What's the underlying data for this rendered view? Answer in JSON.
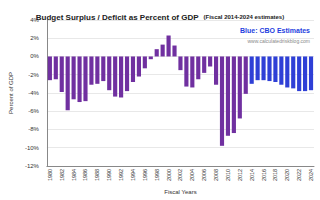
{
  "chart_data": {
    "type": "bar",
    "title": "Budget Surplus / Deficit as Percent of GDP",
    "subtitle": "(Fiscal 2014-2024 estimates)",
    "x_label": "Fiscal Years",
    "y_label": "Percent of GDP",
    "categories": [
      "1980",
      null,
      "1982",
      null,
      "1984",
      null,
      "1986",
      null,
      "1988",
      null,
      "1990",
      null,
      "1992",
      null,
      "1994",
      null,
      "1996",
      null,
      "1998",
      null,
      "2000",
      null,
      "2002",
      null,
      "2004",
      null,
      "2006",
      null,
      "2008",
      null,
      "2010",
      null,
      "2012",
      null,
      "2014",
      null,
      "2016",
      null,
      "2018",
      null,
      "2020",
      null,
      "2022",
      null,
      "2024"
    ],
    "values": [
      -2.6,
      -2.5,
      -3.9,
      -5.9,
      -4.7,
      -5.0,
      -4.9,
      -3.1,
      -3.0,
      -2.7,
      -3.7,
      -4.4,
      -4.5,
      -3.8,
      -2.8,
      -2.2,
      -1.3,
      -0.3,
      0.8,
      1.3,
      2.3,
      1.2,
      -1.5,
      -3.3,
      -3.4,
      -2.5,
      -1.8,
      -1.1,
      -3.1,
      -9.8,
      -8.7,
      -8.4,
      -6.8,
      -4.1,
      -3.0,
      -2.6,
      -2.6,
      -2.7,
      -2.8,
      -3.1,
      -3.4,
      -3.5,
      -3.8,
      -3.8,
      -3.7
    ],
    "colors": [
      "#7030a0",
      "#7030a0",
      "#7030a0",
      "#7030a0",
      "#7030a0",
      "#7030a0",
      "#7030a0",
      "#7030a0",
      "#7030a0",
      "#7030a0",
      "#7030a0",
      "#7030a0",
      "#7030a0",
      "#7030a0",
      "#7030a0",
      "#7030a0",
      "#7030a0",
      "#7030a0",
      "#7030a0",
      "#7030a0",
      "#7030a0",
      "#7030a0",
      "#7030a0",
      "#7030a0",
      "#7030a0",
      "#7030a0",
      "#7030a0",
      "#7030a0",
      "#7030a0",
      "#7030a0",
      "#7030a0",
      "#7030a0",
      "#7030a0",
      "#7030a0",
      "#2e3fd6",
      "#2e3fd6",
      "#2e3fd6",
      "#2e3fd6",
      "#2e3fd6",
      "#2e3fd6",
      "#2e3fd6",
      "#2e3fd6",
      "#2e3fd6",
      "#2e3fd6",
      "#2e3fd6"
    ],
    "ylim": [
      -12,
      4
    ],
    "yticks": [
      {
        "value": -12,
        "label": "-12%"
      },
      {
        "value": -10,
        "label": "-10%"
      },
      {
        "value": -8,
        "label": "-8%"
      },
      {
        "value": -6,
        "label": "-6%"
      },
      {
        "value": -4,
        "label": "-4%"
      },
      {
        "value": -2,
        "label": "-2%"
      },
      {
        "value": 0,
        "label": "0%"
      },
      {
        "value": 2,
        "label": "2%"
      },
      {
        "value": 4,
        "label": "4%"
      }
    ],
    "grid": true,
    "annotations": [
      {
        "text": "Blue: CBO Estimates",
        "color": "#1f3fe0"
      },
      {
        "text": "www.calculatedriskblog.com",
        "color": "#888888"
      }
    ]
  }
}
